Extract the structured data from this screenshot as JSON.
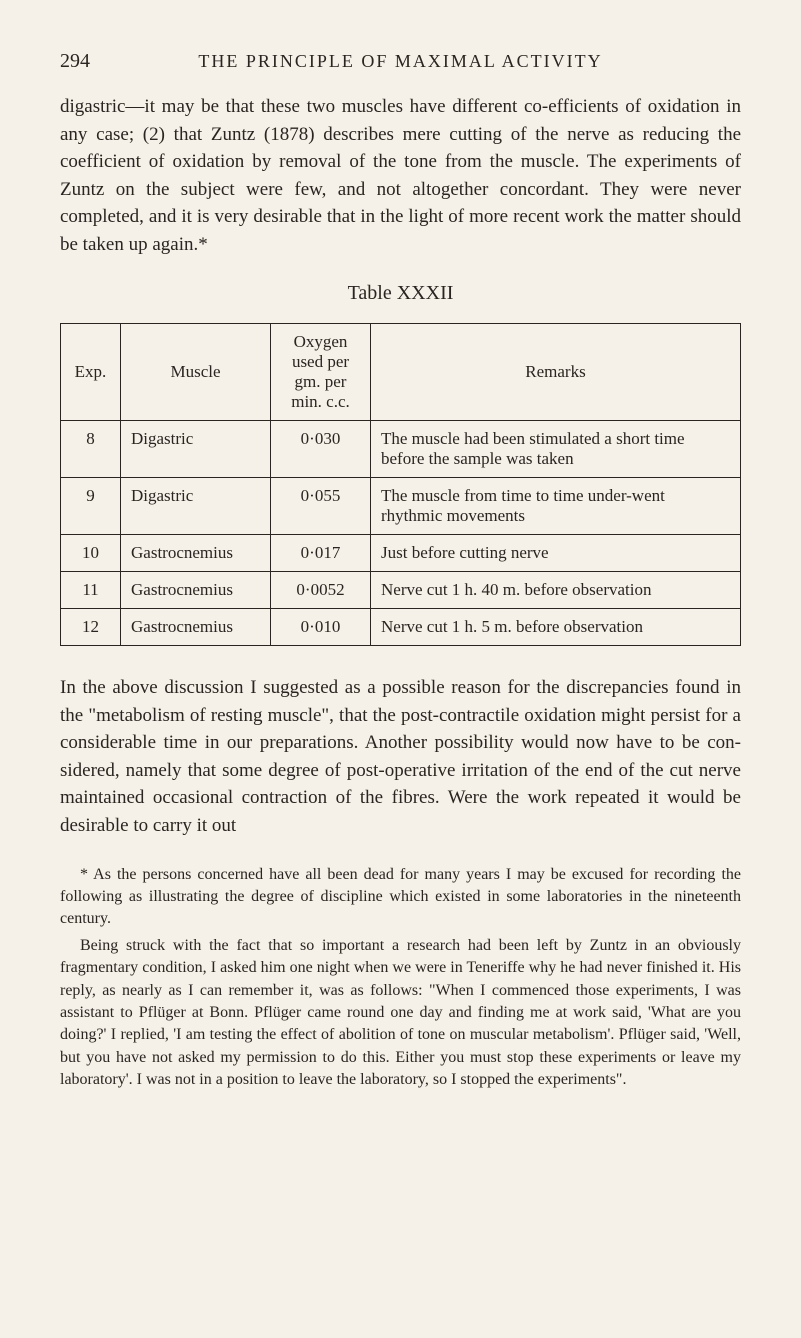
{
  "header": {
    "page_number": "294",
    "title": "THE PRINCIPLE OF MAXIMAL ACTIVITY"
  },
  "paragraphs": {
    "p1": "digastric—it may be that these two muscles have different co-efficients of oxidation in any case; (2) that Zuntz (1878) describes mere cutting of the nerve as reducing the coefficient of oxidation by removal of the tone from the muscle. The experiments of Zuntz on the subject were few, and not altogether concordant. They were never completed, and it is very desirable that in the light of more recent work the matter should be taken up again.*",
    "p2": "In the above discussion I suggested as a possible reason for the discrepancies found in the \"metabolism of resting muscle\", that the post-contractile oxidation might persist for a considerable time in our preparations. Another possibility would now have to be con-sidered, namely that some degree of post-operative irritation of the end of the cut nerve maintained occasional contraction of the fibres. Were the work repeated it would be desirable to carry it out"
  },
  "table": {
    "title": "Table XXXII",
    "headers": {
      "exp": "Exp.",
      "muscle": "Muscle",
      "oxygen": "Oxygen used per gm. per min. c.c.",
      "remarks": "Remarks"
    },
    "rows": [
      {
        "exp": "8",
        "muscle": "Digastric",
        "oxygen": "0·030",
        "remarks": "The muscle had been stimulated a short time before the sample was taken"
      },
      {
        "exp": "9",
        "muscle": "Digastric",
        "oxygen": "0·055",
        "remarks": "The muscle from time to time under-went rhythmic movements"
      },
      {
        "exp": "10",
        "muscle": "Gastrocnemius",
        "oxygen": "0·017",
        "remarks": "Just before cutting nerve"
      },
      {
        "exp": "11",
        "muscle": "Gastrocnemius",
        "oxygen": "0·0052",
        "remarks": "Nerve cut 1 h. 40 m. before observation"
      },
      {
        "exp": "12",
        "muscle": "Gastrocnemius",
        "oxygen": "0·010",
        "remarks": "Nerve cut 1 h. 5 m. before observation"
      }
    ]
  },
  "footnote": {
    "fp1": "* As the persons concerned have all been dead for many years I may be excused for recording the following as illustrating the degree of discipline which existed in some laboratories in the nineteenth century.",
    "fp2": "Being struck with the fact that so important a research had been left by Zuntz in an obviously fragmentary condition, I asked him one night when we were in Teneriffe why he had never finished it. His reply, as nearly as I can remember it, was as follows: \"When I commenced those experiments, I was assistant to Pflüger at Bonn. Pflüger came round one day and finding me at work said, 'What are you doing?' I replied, 'I am testing the effect of abolition of tone on muscular metabolism'. Pflüger said, 'Well, but you have not asked my permission to do this. Either you must stop these experiments or leave my laboratory'. I was not in a position to leave the laboratory, so I stopped the experiments\"."
  },
  "style": {
    "background_color": "#f5f0e8",
    "text_color": "#2a2520",
    "body_fontsize": 19,
    "footnote_fontsize": 16,
    "table_fontsize": 17
  }
}
